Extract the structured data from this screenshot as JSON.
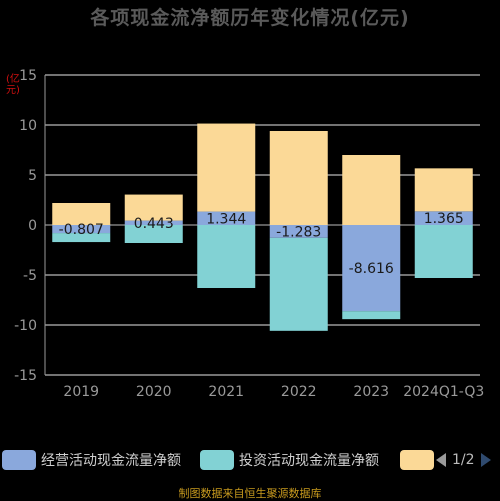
{
  "chart_data": {
    "type": "bar",
    "stacked": true,
    "title": "各项现金流净额历年变化情况(亿元)",
    "y_unit": "(亿元)",
    "categories": [
      "2019",
      "2020",
      "2021",
      "2022",
      "2023",
      "2024Q1-Q3"
    ],
    "ylim": [
      -15,
      15
    ],
    "yticks": [
      15,
      10,
      5,
      0,
      -5,
      -10,
      -15
    ],
    "grid": true,
    "series": [
      {
        "name": "经营活动现金流量净额",
        "color": "#8aa8dc",
        "values": [
          -0.807,
          0.443,
          1.344,
          -1.283,
          -8.616,
          1.365
        ]
      },
      {
        "name": "投资活动现金流量净额",
        "color": "#82d2d4",
        "values": [
          -0.9,
          -1.8,
          -6.3,
          -9.3,
          -0.8,
          -5.3
        ]
      },
      {
        "name": "",
        "color": "#fbd997",
        "values": [
          2.2,
          2.6,
          8.8,
          9.4,
          7.0,
          4.3
        ]
      }
    ],
    "data_labels": [
      "-0.807",
      "0.443",
      "1.344",
      "-1.283",
      "-8.616",
      "1.365"
    ],
    "legend_position": "bottom"
  },
  "legend": {
    "page_indicator": "1/2"
  },
  "source_note": "制图数据来自恒生聚源数据库"
}
